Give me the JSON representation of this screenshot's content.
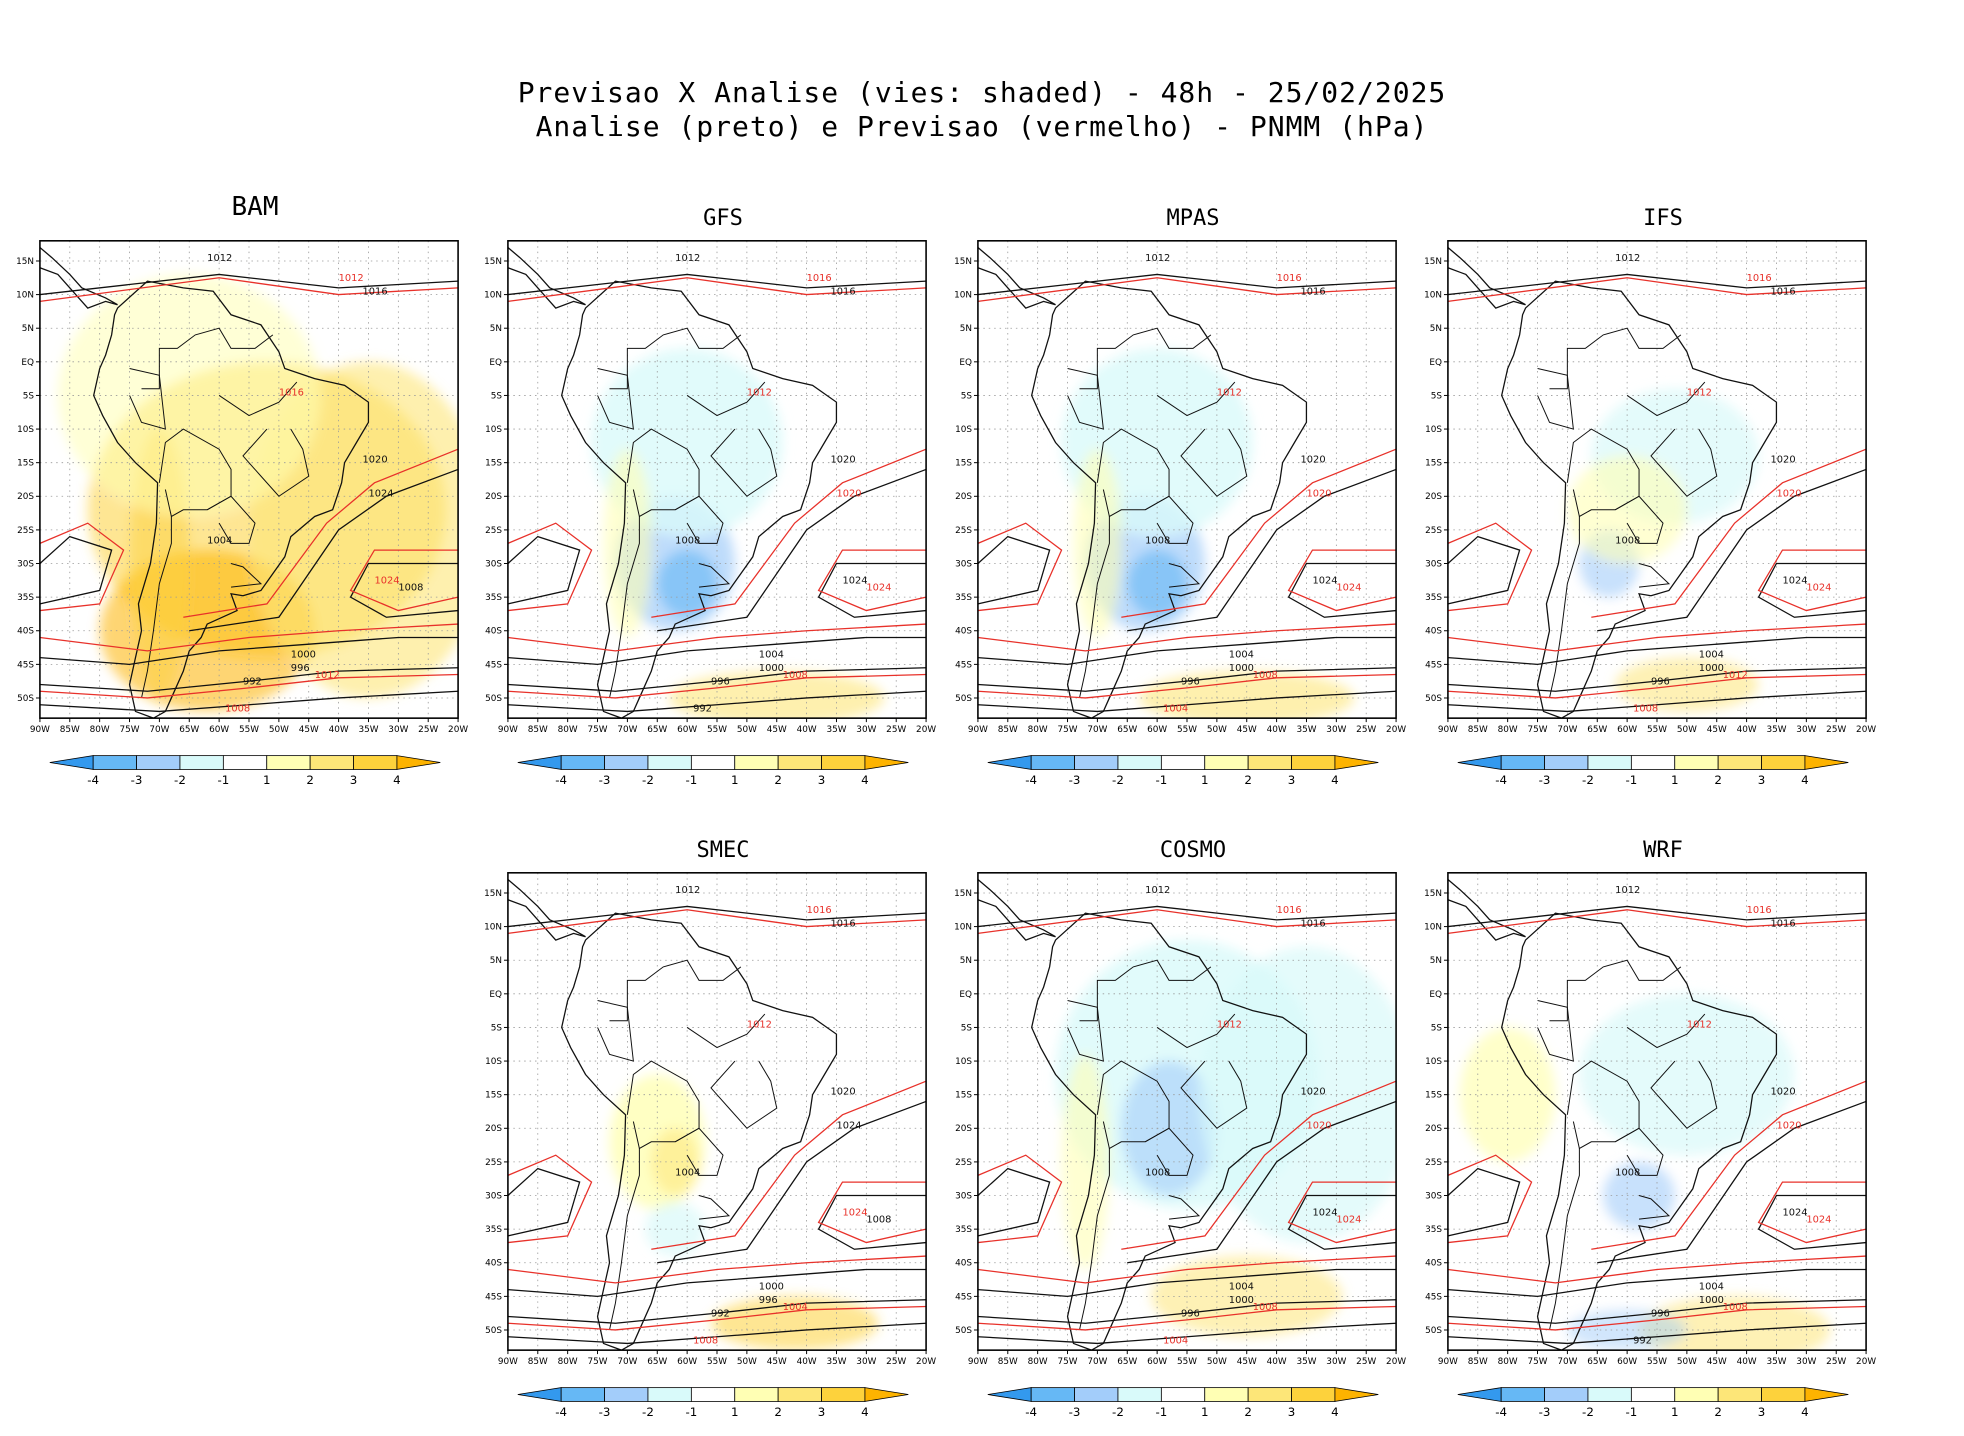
{
  "title_line1": "Previsao X Analise (vies: shaded) - 48h - 25/02/2025",
  "title_line2": "Analise (preto) e Previsao (vermelho) - PNMM (hPa)",
  "lon_labels": [
    "90W",
    "85W",
    "80W",
    "75W",
    "70W",
    "65W",
    "60W",
    "55W",
    "50W",
    "45W",
    "40W",
    "35W",
    "30W",
    "25W",
    "20W"
  ],
  "lat_labels": [
    "15N",
    "10N",
    "5N",
    "EQ",
    "5S",
    "10S",
    "15S",
    "20S",
    "25S",
    "30S",
    "35S",
    "40S",
    "45S",
    "50S"
  ],
  "colorbar": {
    "labels": [
      "-4",
      "-3",
      "-2",
      "-1",
      "1",
      "2",
      "3",
      "4"
    ],
    "colors": [
      "#3399ee",
      "#66b8f5",
      "#a3cdfa",
      "#d9fafa",
      "#ffffff",
      "#ffffb4",
      "#fde678",
      "#fdd23c",
      "#fdb300"
    ]
  },
  "panels": [
    {
      "name": "BAM",
      "bias": "warm",
      "contours": [
        {
          "t": "1012",
          "c": "a"
        },
        {
          "t": "1016",
          "c": "a"
        },
        {
          "t": "1012",
          "c": "f"
        },
        {
          "t": "1016",
          "c": "f"
        },
        {
          "t": "1020",
          "c": "a"
        },
        {
          "t": "1024",
          "c": "a"
        },
        {
          "t": "1024",
          "c": "f"
        },
        {
          "t": "1008",
          "c": "a"
        },
        {
          "t": "1004",
          "c": "a"
        },
        {
          "t": "1000",
          "c": "a"
        },
        {
          "t": "996",
          "c": "a"
        },
        {
          "t": "992",
          "c": "a"
        },
        {
          "t": "1008",
          "c": "f"
        },
        {
          "t": "1012",
          "c": "f"
        }
      ]
    },
    {
      "name": "GFS",
      "bias": "cold",
      "contours": [
        {
          "t": "1012",
          "c": "a"
        },
        {
          "t": "1016",
          "c": "a"
        },
        {
          "t": "1016",
          "c": "f"
        },
        {
          "t": "1012",
          "c": "f"
        },
        {
          "t": "1020",
          "c": "a"
        },
        {
          "t": "1020",
          "c": "f"
        },
        {
          "t": "1024",
          "c": "a"
        },
        {
          "t": "1024",
          "c": "f"
        },
        {
          "t": "1008",
          "c": "a"
        },
        {
          "t": "1004",
          "c": "a"
        },
        {
          "t": "1000",
          "c": "a"
        },
        {
          "t": "996",
          "c": "a"
        },
        {
          "t": "992",
          "c": "a"
        },
        {
          "t": "1008",
          "c": "f"
        }
      ]
    },
    {
      "name": "MPAS",
      "bias": "cold",
      "contours": [
        {
          "t": "1012",
          "c": "a"
        },
        {
          "t": "1016",
          "c": "a"
        },
        {
          "t": "1016",
          "c": "f"
        },
        {
          "t": "1012",
          "c": "f"
        },
        {
          "t": "1020",
          "c": "a"
        },
        {
          "t": "1020",
          "c": "f"
        },
        {
          "t": "1024",
          "c": "a"
        },
        {
          "t": "1024",
          "c": "f"
        },
        {
          "t": "1008",
          "c": "a"
        },
        {
          "t": "1004",
          "c": "a"
        },
        {
          "t": "1000",
          "c": "a"
        },
        {
          "t": "996",
          "c": "a"
        },
        {
          "t": "1004",
          "c": "f"
        },
        {
          "t": "1008",
          "c": "f"
        }
      ]
    },
    {
      "name": "IFS",
      "bias": "mixed",
      "contours": [
        {
          "t": "1012",
          "c": "a"
        },
        {
          "t": "1016",
          "c": "a"
        },
        {
          "t": "1016",
          "c": "f"
        },
        {
          "t": "1012",
          "c": "f"
        },
        {
          "t": "1020",
          "c": "a"
        },
        {
          "t": "1020",
          "c": "f"
        },
        {
          "t": "1024",
          "c": "a"
        },
        {
          "t": "1024",
          "c": "f"
        },
        {
          "t": "1008",
          "c": "a"
        },
        {
          "t": "1004",
          "c": "a"
        },
        {
          "t": "1000",
          "c": "a"
        },
        {
          "t": "996",
          "c": "a"
        },
        {
          "t": "1008",
          "c": "f"
        },
        {
          "t": "1012",
          "c": "f"
        }
      ]
    },
    {
      "name": "SMEC",
      "bias": "light",
      "contours": [
        {
          "t": "1012",
          "c": "a"
        },
        {
          "t": "1016",
          "c": "a"
        },
        {
          "t": "1016",
          "c": "f"
        },
        {
          "t": "1012",
          "c": "f"
        },
        {
          "t": "1020",
          "c": "a"
        },
        {
          "t": "1024",
          "c": "a"
        },
        {
          "t": "1024",
          "c": "f"
        },
        {
          "t": "1008",
          "c": "a"
        },
        {
          "t": "1004",
          "c": "a"
        },
        {
          "t": "1000",
          "c": "a"
        },
        {
          "t": "996",
          "c": "a"
        },
        {
          "t": "992",
          "c": "a"
        },
        {
          "t": "1008",
          "c": "f"
        },
        {
          "t": "1004",
          "c": "f"
        }
      ]
    },
    {
      "name": "COSMO",
      "bias": "mixed-cold",
      "contours": [
        {
          "t": "1012",
          "c": "a"
        },
        {
          "t": "1016",
          "c": "a"
        },
        {
          "t": "1016",
          "c": "f"
        },
        {
          "t": "1012",
          "c": "f"
        },
        {
          "t": "1020",
          "c": "a"
        },
        {
          "t": "1020",
          "c": "f"
        },
        {
          "t": "1024",
          "c": "a"
        },
        {
          "t": "1024",
          "c": "f"
        },
        {
          "t": "1008",
          "c": "a"
        },
        {
          "t": "1004",
          "c": "a"
        },
        {
          "t": "1000",
          "c": "a"
        },
        {
          "t": "996",
          "c": "a"
        },
        {
          "t": "1004",
          "c": "f"
        },
        {
          "t": "1008",
          "c": "f"
        }
      ]
    },
    {
      "name": "WRF",
      "bias": "mixed-warm",
      "contours": [
        {
          "t": "1012",
          "c": "a"
        },
        {
          "t": "1016",
          "c": "a"
        },
        {
          "t": "1016",
          "c": "f"
        },
        {
          "t": "1012",
          "c": "f"
        },
        {
          "t": "1020",
          "c": "a"
        },
        {
          "t": "1020",
          "c": "f"
        },
        {
          "t": "1024",
          "c": "a"
        },
        {
          "t": "1024",
          "c": "f"
        },
        {
          "t": "1008",
          "c": "a"
        },
        {
          "t": "1004",
          "c": "a"
        },
        {
          "t": "1000",
          "c": "a"
        },
        {
          "t": "996",
          "c": "a"
        },
        {
          "t": "992",
          "c": "a"
        },
        {
          "t": "1008",
          "c": "f"
        }
      ]
    }
  ]
}
